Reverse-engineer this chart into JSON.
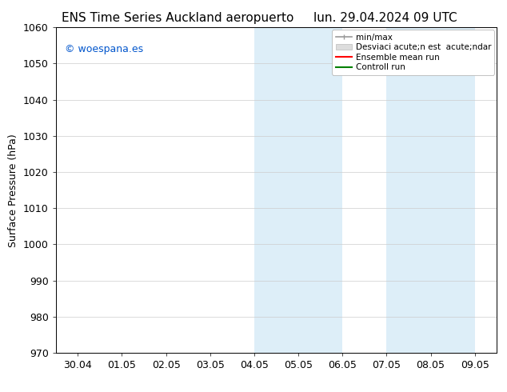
{
  "title_left": "ENS Time Series Auckland aeropuerto",
  "title_right": "lun. 29.04.2024 09 UTC",
  "ylabel": "Surface Pressure (hPa)",
  "ylim": [
    970,
    1060
  ],
  "yticks": [
    970,
    980,
    990,
    1000,
    1010,
    1020,
    1030,
    1040,
    1050,
    1060
  ],
  "xtick_labels": [
    "30.04",
    "01.05",
    "02.05",
    "03.05",
    "04.05",
    "05.05",
    "06.05",
    "07.05",
    "08.05",
    "09.05"
  ],
  "xtick_positions": [
    0,
    1,
    2,
    3,
    4,
    5,
    6,
    7,
    8,
    9
  ],
  "xlim": [
    -0.5,
    9.5
  ],
  "shaded_bands": [
    {
      "xmin": 4.0,
      "xmax": 6.0,
      "color": "#ddeef8"
    },
    {
      "xmin": 7.0,
      "xmax": 9.0,
      "color": "#ddeef8"
    }
  ],
  "watermark_text": "© woespana.es",
  "watermark_color": "#0055cc",
  "background_color": "#ffffff",
  "grid_color": "#cccccc",
  "title_fontsize": 11,
  "tick_fontsize": 9,
  "ylabel_fontsize": 9,
  "watermark_fontsize": 9
}
